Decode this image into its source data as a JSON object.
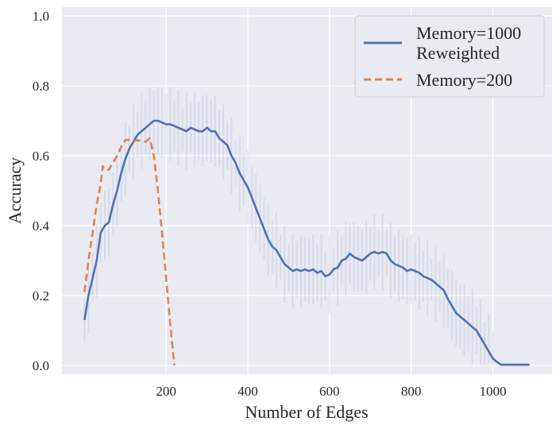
{
  "chart_data": {
    "type": "line",
    "title": "",
    "xlabel": "Number of Edges",
    "ylabel": "Accuracy",
    "xlim": [
      -55,
      1145
    ],
    "ylim": [
      -0.025,
      1.025
    ],
    "xticks": [
      200,
      400,
      600,
      800,
      1000
    ],
    "xtick_labels": [
      "200",
      "400",
      "600",
      "800",
      "1000"
    ],
    "yticks": [
      0.0,
      0.2,
      0.4,
      0.6,
      0.8,
      1.0
    ],
    "ytick_labels": [
      "0.0",
      "0.2",
      "0.4",
      "0.6",
      "0.8",
      "1.0"
    ],
    "grid": true,
    "legend_position": "top-right",
    "colors": {
      "background": "#EAEAF2",
      "grid": "#FFFFFF",
      "series1": "#4C72B0",
      "series2": "#DD8452"
    },
    "series": [
      {
        "name": "Memory=1000\nReweighted",
        "legend_lines": [
          "Memory=1000",
          "Reweighted"
        ],
        "style": "solid",
        "color": "#4C72B0",
        "x": [
          0,
          10,
          20,
          30,
          40,
          50,
          60,
          70,
          80,
          90,
          100,
          110,
          120,
          130,
          140,
          150,
          160,
          170,
          180,
          190,
          200,
          210,
          220,
          230,
          240,
          250,
          260,
          270,
          280,
          290,
          300,
          310,
          320,
          330,
          340,
          350,
          360,
          370,
          380,
          390,
          400,
          410,
          420,
          430,
          440,
          450,
          460,
          470,
          480,
          490,
          500,
          510,
          520,
          530,
          540,
          550,
          560,
          570,
          580,
          590,
          600,
          610,
          620,
          630,
          640,
          650,
          660,
          670,
          680,
          690,
          700,
          710,
          720,
          730,
          740,
          750,
          760,
          770,
          780,
          790,
          800,
          810,
          820,
          830,
          840,
          850,
          860,
          870,
          880,
          890,
          900,
          910,
          920,
          930,
          940,
          950,
          960,
          970,
          980,
          990,
          1000,
          1010,
          1020,
          1040,
          1060,
          1090
        ],
        "y": [
          0.13,
          0.2,
          0.25,
          0.3,
          0.38,
          0.4,
          0.41,
          0.46,
          0.5,
          0.55,
          0.59,
          0.62,
          0.64,
          0.66,
          0.67,
          0.68,
          0.69,
          0.7,
          0.7,
          0.695,
          0.69,
          0.69,
          0.685,
          0.68,
          0.675,
          0.67,
          0.68,
          0.675,
          0.67,
          0.67,
          0.68,
          0.67,
          0.67,
          0.65,
          0.64,
          0.63,
          0.6,
          0.58,
          0.55,
          0.53,
          0.51,
          0.48,
          0.45,
          0.42,
          0.39,
          0.36,
          0.34,
          0.33,
          0.31,
          0.29,
          0.28,
          0.27,
          0.275,
          0.27,
          0.275,
          0.27,
          0.275,
          0.265,
          0.27,
          0.255,
          0.26,
          0.275,
          0.28,
          0.3,
          0.305,
          0.32,
          0.31,
          0.305,
          0.3,
          0.31,
          0.32,
          0.325,
          0.32,
          0.325,
          0.32,
          0.3,
          0.29,
          0.285,
          0.28,
          0.27,
          0.275,
          0.27,
          0.265,
          0.255,
          0.25,
          0.245,
          0.235,
          0.225,
          0.215,
          0.19,
          0.17,
          0.15,
          0.14,
          0.13,
          0.12,
          0.11,
          0.1,
          0.08,
          0.06,
          0.04,
          0.02,
          0.01,
          0.002,
          0.002,
          0.002,
          0.002
        ]
      },
      {
        "name": "Memory=200",
        "style": "dashed",
        "color": "#DD8452",
        "x": [
          0,
          10,
          20,
          30,
          40,
          45,
          50,
          60,
          70,
          80,
          90,
          100,
          110,
          120,
          130,
          140,
          150,
          160,
          170,
          180,
          190,
          200,
          210,
          220
        ],
        "y": [
          0.21,
          0.3,
          0.38,
          0.46,
          0.52,
          0.57,
          0.56,
          0.56,
          0.58,
          0.6,
          0.625,
          0.645,
          0.645,
          0.64,
          0.645,
          0.64,
          0.64,
          0.65,
          0.6,
          0.5,
          0.38,
          0.25,
          0.12,
          0.0
        ]
      }
    ]
  }
}
